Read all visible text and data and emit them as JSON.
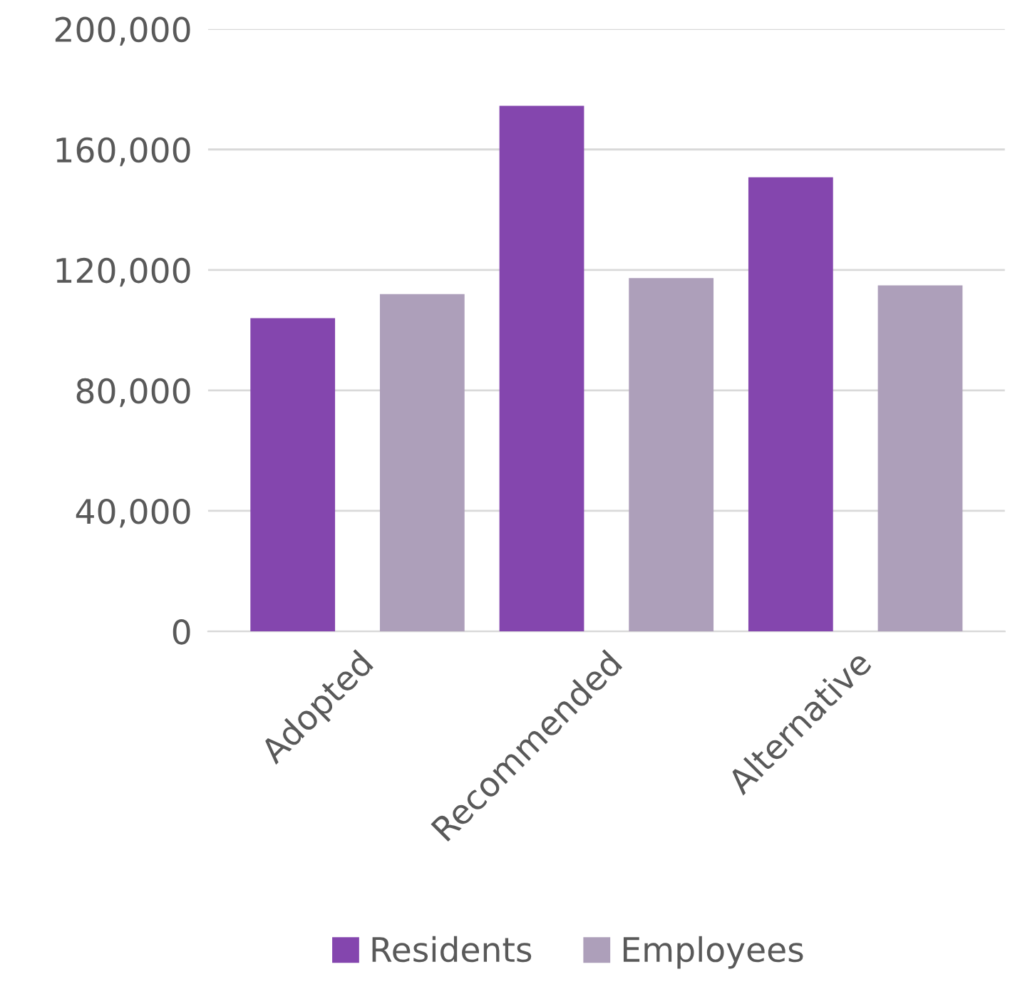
{
  "chart_data": {
    "type": "bar",
    "categories": [
      "Adopted",
      "Recommended",
      "Alternative"
    ],
    "series": [
      {
        "name": "Residents",
        "color": "#8446ae",
        "values": [
          104000,
          174500,
          150800
        ]
      },
      {
        "name": "Employees",
        "color": "#ad9fba",
        "values": [
          112000,
          117300,
          114900
        ]
      }
    ],
    "ylim": [
      0,
      200000
    ],
    "yticks": [
      {
        "value": 0,
        "label": "0"
      },
      {
        "value": 40000,
        "label": "40,000"
      },
      {
        "value": 80000,
        "label": "80,000"
      },
      {
        "value": 120000,
        "label": "120,000"
      },
      {
        "value": 160000,
        "label": "160,000"
      },
      {
        "value": 200000,
        "label": "200,000"
      }
    ],
    "grid": "y",
    "legend": "bottom"
  }
}
